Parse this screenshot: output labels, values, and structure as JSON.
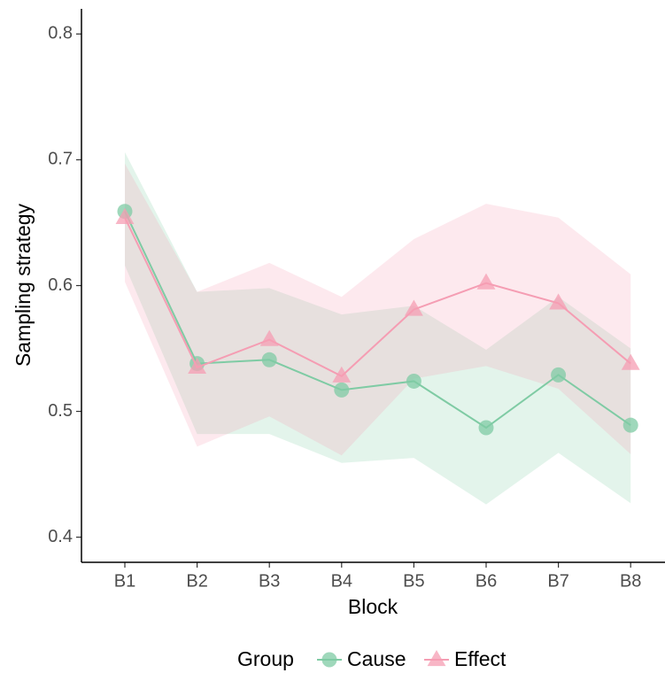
{
  "chart_data": {
    "type": "line",
    "x_label": "Block",
    "y_label": "Sampling strategy",
    "legend_title": "Group",
    "categories": [
      "B1",
      "B2",
      "B3",
      "B4",
      "B5",
      "B6",
      "B7",
      "B8"
    ],
    "ylim": [
      0.38,
      0.82
    ],
    "yticks": [
      0.4,
      0.5,
      0.6,
      0.7,
      0.8
    ],
    "series": [
      {
        "name": "Cause",
        "color": "#7fcba4",
        "marker": "circle",
        "values": [
          0.659,
          0.538,
          0.541,
          0.517,
          0.524,
          0.487,
          0.529,
          0.489
        ],
        "upper": [
          0.706,
          0.595,
          0.598,
          0.577,
          0.584,
          0.549,
          0.591,
          0.55
        ],
        "lower": [
          0.616,
          0.482,
          0.482,
          0.459,
          0.463,
          0.426,
          0.467,
          0.427
        ]
      },
      {
        "name": "Effect",
        "color": "#f59db3",
        "marker": "triangle",
        "values": [
          0.654,
          0.535,
          0.557,
          0.528,
          0.581,
          0.602,
          0.586,
          0.538
        ],
        "upper": [
          0.697,
          0.595,
          0.618,
          0.591,
          0.637,
          0.665,
          0.654,
          0.609
        ],
        "lower": [
          0.603,
          0.472,
          0.496,
          0.465,
          0.526,
          0.536,
          0.518,
          0.466
        ]
      }
    ]
  }
}
